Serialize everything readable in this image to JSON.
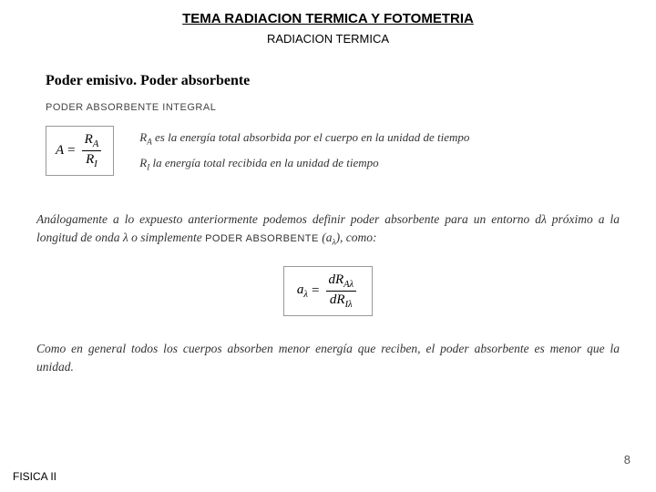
{
  "header": {
    "title": "TEMA  RADIACION TERMICA Y FOTOMETRIA",
    "subtitle": "RADIACION TERMICA"
  },
  "section": {
    "heading": "Poder emisivo. Poder absorbente",
    "subheading": "PODER ABSORBENTE INTEGRAL"
  },
  "formula1": {
    "lhs": "A",
    "eq": "=",
    "num_sym": "R",
    "num_sub": "A",
    "den_sym": "R",
    "den_sub": "I"
  },
  "defs": {
    "line1_sym": "R",
    "line1_sub": "A",
    "line1_text": " es la energía total absorbida por el cuerpo en la unidad de tiempo",
    "line2_sym": "R",
    "line2_sub": "I",
    "line2_text": " la energía total recibida en la unidad de tiempo"
  },
  "paragraph1": {
    "pre": "Análogamente a lo expuesto anteriormente podemos definir poder absorbente para un entorno dλ próximo a la longitud de onda λ o simplemente ",
    "caps": "PODER ABSORBENTE",
    "post": " (a",
    "post_sub": "λ",
    "post2": "), como:"
  },
  "formula2": {
    "lhs_sym": "a",
    "lhs_sub": "λ",
    "eq": "=",
    "num": "dR",
    "num_sub": "Aλ",
    "den": "dR",
    "den_sub": "Iλ"
  },
  "paragraph2": "Como en general todos los cuerpos absorben menor energía que reciben, el poder absorbente es menor que la unidad.",
  "footer": {
    "left": "FISICA II",
    "page": "8"
  },
  "style": {
    "background": "#ffffff",
    "text_color": "#000000",
    "muted": "#333333",
    "border": "#999999",
    "title_fontsize": 15,
    "body_fontsize": 13.5
  }
}
